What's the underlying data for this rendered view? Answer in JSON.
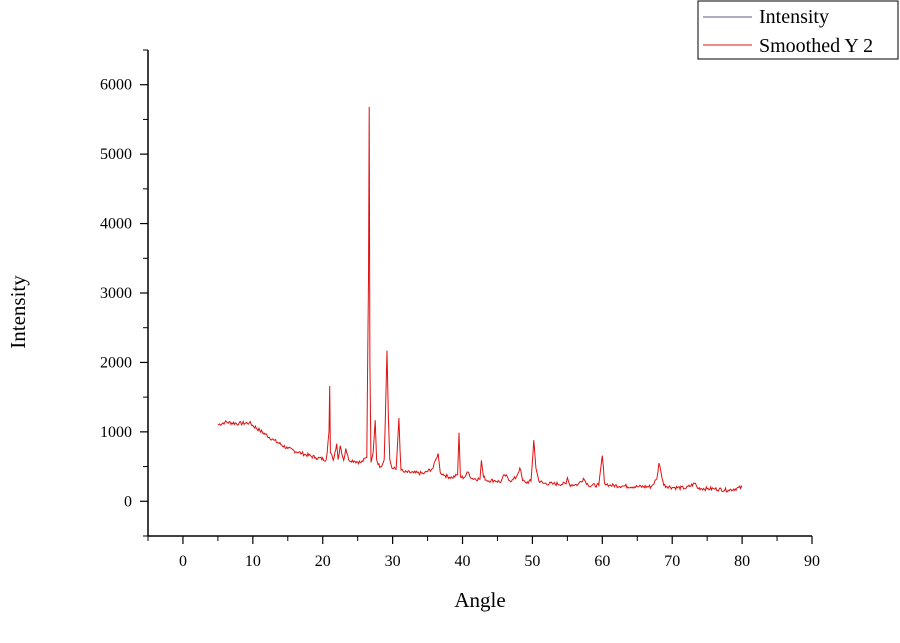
{
  "chart_data": {
    "type": "line",
    "xlabel": "Angle",
    "ylabel": "Intensity",
    "xlim": [
      -5,
      90
    ],
    "ylim": [
      -500,
      6500
    ],
    "x_ticks": [
      0,
      10,
      20,
      30,
      40,
      50,
      60,
      70,
      80,
      90
    ],
    "y_ticks": [
      0,
      1000,
      2000,
      3000,
      4000,
      5000,
      6000
    ],
    "x_tick_labels": [
      "0",
      "10",
      "20",
      "30",
      "40",
      "50",
      "60",
      "70",
      "80",
      "90"
    ],
    "y_tick_labels": [
      "0",
      "1000",
      "2000",
      "3000",
      "4000",
      "5000",
      "6000"
    ],
    "grid": false,
    "legend_position": "top-right",
    "series": [
      {
        "name": "Intensity",
        "color": "#5a5a8a"
      },
      {
        "name": "Smoothed Y 2",
        "color": "#e01010",
        "x": [
          5,
          6,
          8,
          9.5,
          11,
          13,
          15,
          17,
          19,
          20.5,
          20.9,
          21.0,
          21.1,
          21.5,
          22.0,
          22.2,
          22.5,
          23.0,
          23.3,
          23.7,
          24.5,
          25.5,
          26.3,
          26.55,
          26.65,
          26.75,
          26.9,
          27.2,
          27.5,
          27.7,
          27.9,
          28.3,
          28.8,
          29.2,
          29.4,
          29.6,
          29.9,
          30.5,
          30.9,
          31.05,
          31.2,
          31.6,
          33,
          34.5,
          35.8,
          36.2,
          36.5,
          36.8,
          37.5,
          38.5,
          39.3,
          39.5,
          39.7,
          40.2,
          40.8,
          41.3,
          42.5,
          42.7,
          43.0,
          43.5,
          44.5,
          45.5,
          46.0,
          47,
          47.7,
          48.2,
          48.6,
          49.0,
          49.8,
          50.2,
          50.5,
          50.9,
          51.5,
          53,
          54.8,
          55.0,
          55.3,
          56.5,
          57.3,
          58,
          59.5,
          60.0,
          60.3,
          61,
          63,
          65,
          67,
          67.8,
          68.1,
          68.4,
          68.8,
          70,
          72,
          73.3,
          73.6,
          75,
          76,
          78,
          80
        ],
        "y": [
          1100,
          1140,
          1120,
          1130,
          1020,
          880,
          760,
          690,
          630,
          600,
          1000,
          1660,
          700,
          590,
          830,
          600,
          800,
          590,
          760,
          600,
          580,
          560,
          630,
          3200,
          5680,
          2000,
          560,
          700,
          1170,
          600,
          530,
          500,
          600,
          2170,
          1200,
          600,
          480,
          460,
          1200,
          750,
          450,
          420,
          410,
          400,
          480,
          610,
          690,
          420,
          370,
          340,
          380,
          990,
          350,
          340,
          420,
          330,
          320,
          590,
          350,
          300,
          300,
          280,
          380,
          290,
          350,
          480,
          300,
          270,
          290,
          880,
          480,
          300,
          260,
          250,
          250,
          340,
          240,
          240,
          330,
          230,
          230,
          660,
          270,
          230,
          220,
          210,
          210,
          320,
          550,
          420,
          230,
          200,
          190,
          260,
          190,
          180,
          180,
          160,
          200
        ]
      }
    ]
  }
}
